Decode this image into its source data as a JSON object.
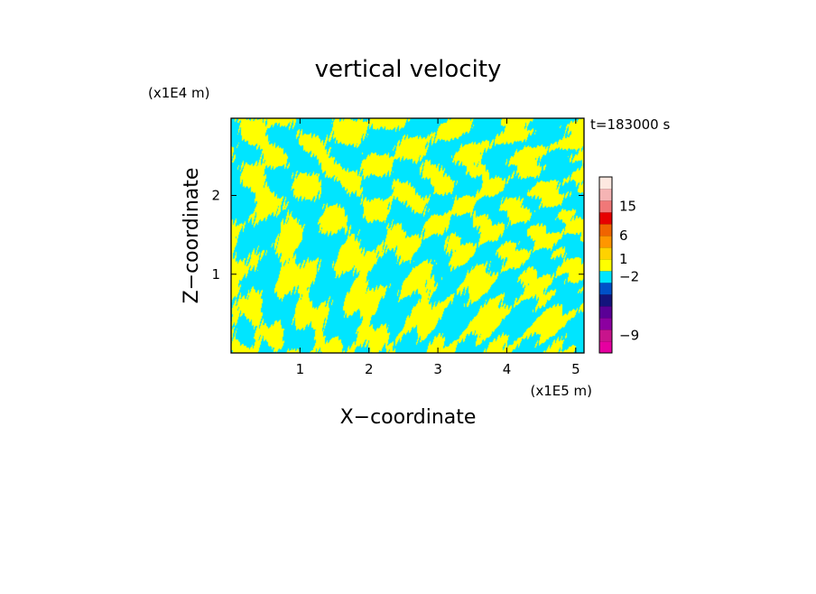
{
  "chart_data": {
    "type": "heatmap",
    "title": "vertical velocity",
    "xlabel": "X−coordinate",
    "ylabel": "Z−coordinate",
    "x_unit": "(x1E5 m)",
    "y_unit": "(x1E4 m)",
    "time_label": "t=183000 s",
    "xlim": [
      0,
      5.12
    ],
    "ylim": [
      0,
      2.98
    ],
    "x_ticks": [
      1,
      2,
      3,
      4,
      5
    ],
    "y_ticks": [
      1,
      2
    ],
    "pattern_colors": [
      "#ffff00",
      "#00e5ff"
    ],
    "colorbar": {
      "levels": [
        {
          "color": "#e600a0"
        },
        {
          "color": "#c8148c"
        },
        {
          "color": "#8c00a0"
        },
        {
          "color": "#5a0096"
        },
        {
          "color": "#14147d"
        },
        {
          "color": "#0050c8"
        },
        {
          "color": "#00e5ff"
        },
        {
          "color": "#ffff00"
        },
        {
          "color": "#ffd200"
        },
        {
          "color": "#ff9600"
        },
        {
          "color": "#f06400"
        },
        {
          "color": "#e60000"
        },
        {
          "color": "#f07878"
        },
        {
          "color": "#f5b4b4"
        },
        {
          "color": "#fde8e0"
        }
      ],
      "labels": [
        {
          "text": "15",
          "level": 12.5
        },
        {
          "text": "6",
          "level": 10
        },
        {
          "text": "1",
          "level": 8
        },
        {
          "text": "−2",
          "level": 6.5
        },
        {
          "text": "−9",
          "level": 1.5
        }
      ]
    }
  }
}
